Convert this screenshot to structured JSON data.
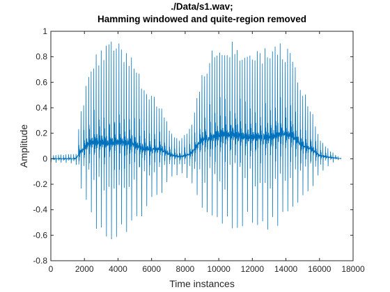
{
  "chart_data": {
    "type": "line",
    "title_lines": [
      "./Data/s1.wav;",
      "Hamming windowed and quite-region removed"
    ],
    "xlabel": "Time instances",
    "ylabel": "Amplitude",
    "xlim": [
      0,
      18000
    ],
    "ylim": [
      -0.8,
      1
    ],
    "xticks": [
      0,
      2000,
      4000,
      6000,
      8000,
      10000,
      12000,
      14000,
      16000,
      18000
    ],
    "xtick_labels": [
      "0",
      "2000",
      "4000",
      "6000",
      "8000",
      "10000",
      "12000",
      "14000",
      "16000",
      "18000"
    ],
    "yticks": [
      1,
      0.8,
      0.6,
      0.4,
      0.2,
      0,
      -0.2,
      -0.4,
      -0.6,
      -0.8
    ],
    "ytick_labels": [
      "1",
      "0.8",
      "0.6",
      "0.4",
      "0.2",
      "0",
      "-0.2",
      "-0.4",
      "-0.6",
      "-0.8"
    ],
    "grid": false,
    "line_color": "#0072BD",
    "series": [
      {
        "x_range": [
          0,
          17300
        ],
        "envelope": {
          "x": [
            0,
            1500,
            1700,
            2300,
            2800,
            3400,
            4000,
            4700,
            5500,
            6500,
            7200,
            7700,
            8300,
            9000,
            9600,
            10300,
            11000,
            11700,
            12400,
            13100,
            13700,
            14300,
            14900,
            15500,
            16000,
            16600,
            17000,
            17300
          ],
          "pos": [
            0.03,
            0.04,
            0.32,
            0.7,
            0.85,
            0.93,
            0.91,
            0.85,
            0.6,
            0.45,
            0.2,
            0.15,
            0.25,
            0.7,
            0.86,
            0.93,
            0.92,
            0.85,
            0.87,
            0.9,
            0.92,
            0.85,
            0.6,
            0.4,
            0.17,
            0.07,
            0.03,
            0.0
          ],
          "neg": [
            -0.03,
            -0.04,
            -0.23,
            -0.45,
            -0.6,
            -0.69,
            -0.65,
            -0.6,
            -0.45,
            -0.3,
            -0.15,
            -0.12,
            -0.18,
            -0.4,
            -0.52,
            -0.55,
            -0.55,
            -0.52,
            -0.53,
            -0.57,
            -0.52,
            -0.48,
            -0.38,
            -0.25,
            -0.12,
            -0.05,
            -0.02,
            0.0
          ]
        }
      }
    ]
  }
}
